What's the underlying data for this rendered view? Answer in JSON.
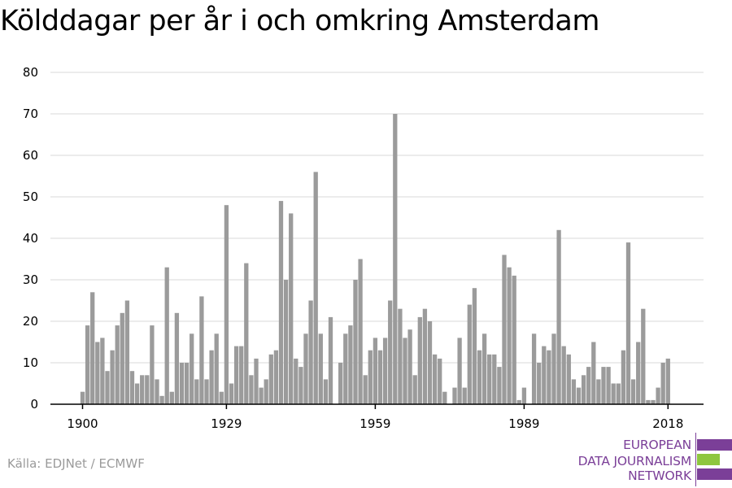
{
  "title": "Kölddagar per år i och omkring Amsterdam",
  "source": "Källa: EDJNet / ECMWF",
  "logo": {
    "lines": [
      "EUROPEAN",
      "DATA JOURNALISM",
      "NETWORK"
    ],
    "colors": {
      "purple": "#7b3f98",
      "green": "#8ec63f"
    }
  },
  "colors": {
    "bar": "#9b9b9b",
    "grid": "#d9d9d9",
    "axis": "#000000"
  },
  "chart_data": {
    "type": "bar",
    "x_start": 1900,
    "x_end": 2018,
    "x_ticks": [
      "1900",
      "1929",
      "1959",
      "1989",
      "2018"
    ],
    "ylim": [
      0,
      80
    ],
    "y_ticks": [
      0,
      10,
      20,
      30,
      40,
      50,
      60,
      70,
      80
    ],
    "grid": true,
    "categories": [
      1900,
      1901,
      1902,
      1903,
      1904,
      1905,
      1906,
      1907,
      1908,
      1909,
      1910,
      1911,
      1912,
      1913,
      1914,
      1915,
      1916,
      1917,
      1918,
      1919,
      1920,
      1921,
      1922,
      1923,
      1924,
      1925,
      1926,
      1927,
      1928,
      1929,
      1930,
      1931,
      1932,
      1933,
      1934,
      1935,
      1936,
      1937,
      1938,
      1939,
      1940,
      1941,
      1942,
      1943,
      1944,
      1945,
      1946,
      1947,
      1948,
      1949,
      1950,
      1951,
      1952,
      1953,
      1954,
      1955,
      1956,
      1957,
      1958,
      1959,
      1960,
      1961,
      1962,
      1963,
      1964,
      1965,
      1966,
      1967,
      1968,
      1969,
      1970,
      1971,
      1972,
      1973,
      1974,
      1975,
      1976,
      1977,
      1978,
      1979,
      1980,
      1981,
      1982,
      1983,
      1984,
      1985,
      1986,
      1987,
      1988,
      1989,
      1990,
      1991,
      1992,
      1993,
      1994,
      1995,
      1996,
      1997,
      1998,
      1999,
      2000,
      2001,
      2002,
      2003,
      2004,
      2005,
      2006,
      2007,
      2008,
      2009,
      2010,
      2011,
      2012,
      2013,
      2014,
      2015,
      2016,
      2017,
      2018
    ],
    "values": [
      3,
      19,
      27,
      15,
      16,
      8,
      13,
      19,
      22,
      25,
      8,
      5,
      7,
      7,
      19,
      6,
      2,
      33,
      3,
      22,
      10,
      10,
      17,
      6,
      26,
      6,
      13,
      17,
      3,
      48,
      5,
      14,
      14,
      34,
      7,
      11,
      4,
      6,
      12,
      13,
      49,
      30,
      46,
      11,
      9,
      17,
      25,
      56,
      17,
      6,
      21,
      0,
      10,
      17,
      19,
      30,
      35,
      7,
      13,
      16,
      13,
      16,
      25,
      70,
      23,
      16,
      18,
      7,
      21,
      23,
      20,
      12,
      11,
      3,
      0,
      4,
      16,
      4,
      24,
      28,
      13,
      17,
      12,
      12,
      9,
      36,
      33,
      31,
      1,
      4,
      0,
      17,
      10,
      14,
      13,
      17,
      42,
      14,
      12,
      6,
      4,
      7,
      9,
      15,
      6,
      9,
      9,
      5,
      5,
      13,
      39,
      6,
      15,
      23,
      1,
      1,
      4,
      10,
      11
    ]
  }
}
